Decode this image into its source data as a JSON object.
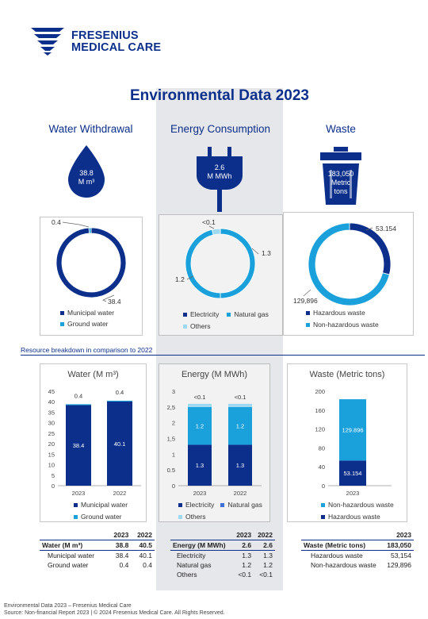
{
  "brand": {
    "line1": "FRESENIUS",
    "line2": "MEDICAL CARE"
  },
  "title": "Environmental Data 2023",
  "colors": {
    "dark": "#0b2f8a",
    "light": "#1aa0da",
    "pale": "#9fd9f1",
    "brand": "#0b2f8a"
  },
  "sections": {
    "water": {
      "heading": "Water Withdrawal",
      "icon_value": "38.8",
      "icon_unit": "M m³",
      "icon": "water-drop-icon"
    },
    "energy": {
      "heading": "Energy Consumption",
      "icon_value": "2.6",
      "icon_unit": "M MWh",
      "icon": "power-plug-icon"
    },
    "waste": {
      "heading": "Waste",
      "icon_value": "183,050",
      "icon_unit1": "Metric",
      "icon_unit2": "tons",
      "icon": "trash-bin-icon"
    }
  },
  "donut_labels": {
    "water": {
      "a": "0.4",
      "b": "38.4"
    },
    "energy": {
      "a": "<0.1",
      "b": "1.3",
      "c": "1.2"
    },
    "waste": {
      "a": "53.154",
      "b": "129,896"
    }
  },
  "legends": {
    "water": [
      "Municipal water",
      "Ground water"
    ],
    "energy": [
      "Electricity",
      "Natural gas",
      "Others"
    ],
    "waste": [
      "Hazardous waste",
      "Non-hazardous waste"
    ],
    "water_bar": [
      "Municipal water",
      "Ground water"
    ],
    "energy_bar": [
      "Electricity",
      "Natural gas",
      "Others"
    ],
    "waste_bar": [
      "Non-hazardous waste",
      "Hazardous waste"
    ]
  },
  "breakdown_heading": "Resource breakdown in comparison to 2022",
  "chart_titles": {
    "water": "Water (M m³)",
    "energy": "Energy (M MWh)",
    "waste": "Waste (Metric tons)"
  },
  "chart_data": [
    {
      "type": "pie",
      "name": "water-donut",
      "labels": [
        "Municipal water",
        "Ground water"
      ],
      "values": [
        38.4,
        0.4
      ]
    },
    {
      "type": "pie",
      "name": "energy-donut",
      "labels": [
        "Electricity",
        "Natural gas",
        "Others"
      ],
      "values": [
        1.3,
        1.2,
        0.1
      ]
    },
    {
      "type": "pie",
      "name": "waste-donut",
      "labels": [
        "Hazardous waste",
        "Non-hazardous waste"
      ],
      "values": [
        53.154,
        129.896
      ]
    },
    {
      "type": "bar",
      "stacked": true,
      "title": "Water (M m³)",
      "categories": [
        "2023",
        "2022"
      ],
      "ylim": [
        0,
        45
      ],
      "yticks": [
        "0",
        "5",
        "10",
        "15",
        "20",
        "25",
        "30",
        "35",
        "40",
        "45"
      ],
      "series": [
        {
          "name": "Municipal water",
          "values": [
            38.4,
            40.1
          ],
          "labels": [
            "38.4",
            "40.1"
          ]
        },
        {
          "name": "Ground water",
          "values": [
            0.4,
            0.4
          ],
          "labels": [
            "0.4",
            "0.4"
          ]
        }
      ]
    },
    {
      "type": "bar",
      "stacked": true,
      "title": "Energy (M MWh)",
      "categories": [
        "2023",
        "2022"
      ],
      "ylim": [
        0,
        3
      ],
      "yticks": [
        "0",
        "0.5",
        "1",
        "1,5",
        "2",
        "2,5",
        "3"
      ],
      "series": [
        {
          "name": "Electricity",
          "values": [
            1.3,
            1.3
          ],
          "labels": [
            "1.3",
            "1.3"
          ]
        },
        {
          "name": "Natural gas",
          "values": [
            1.2,
            1.2
          ],
          "labels": [
            "1.2",
            "1.2"
          ]
        },
        {
          "name": "Others",
          "values": [
            0.1,
            0.1
          ],
          "labels": [
            "<0.1",
            "<0.1"
          ]
        }
      ]
    },
    {
      "type": "bar",
      "stacked": true,
      "title": "Waste (Metric tons)",
      "categories": [
        "2023"
      ],
      "ylim": [
        0,
        200
      ],
      "yticks": [
        "0",
        "40",
        "80",
        "120",
        "160",
        "200"
      ],
      "series": [
        {
          "name": "Hazardous waste",
          "values": [
            53.154
          ],
          "labels": [
            "53.154"
          ]
        },
        {
          "name": "Non-hazardous waste",
          "values": [
            129.896
          ],
          "labels": [
            "129.896"
          ]
        }
      ]
    }
  ],
  "tables": {
    "water": {
      "years": [
        "2023",
        "2022"
      ],
      "rows": [
        [
          "Water (M m³)",
          "38.8",
          "40.5"
        ],
        [
          "Municipal water",
          "38.4",
          "40.1"
        ],
        [
          "Ground water",
          "0.4",
          "0.4"
        ]
      ]
    },
    "energy": {
      "years": [
        "2023",
        "2022"
      ],
      "rows": [
        [
          "Energy (M MWh)",
          "2.6",
          "2.6"
        ],
        [
          "Electricity",
          "1.3",
          "1.3"
        ],
        [
          "Natural gas",
          "1.2",
          "1.2"
        ],
        [
          "Others",
          "<0.1",
          "<0.1"
        ]
      ]
    },
    "waste": {
      "years": [
        "2023"
      ],
      "rows": [
        [
          "Waste (Metric tons)",
          "183,050"
        ],
        [
          "Hazardous waste",
          "53,154"
        ],
        [
          "Non-hazardous waste",
          "129,896"
        ]
      ]
    }
  },
  "footer": {
    "line1": "Environmental Data 2023 – Fresenius Medical Care",
    "line2": "Source: Non-financial Report 2023 | © 2024 Fresenius Medical Care. All Rights Reserved."
  }
}
